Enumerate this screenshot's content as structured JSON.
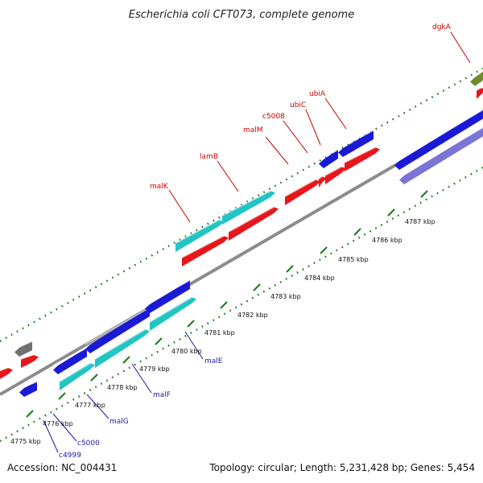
{
  "title": "Escherichia coli CFT073, complete genome",
  "footer": {
    "accession": "Accession: NC_004431",
    "summary": "Topology: circular; Length: 5,231,428 bp; Genes: 5,454"
  },
  "scale_labels": [
    "4775 kbp",
    "4776 kbp",
    "4777 kbp",
    "4778 kbp",
    "4779 kbp",
    "4780 kbp",
    "4781 kbp",
    "4782 kbp",
    "4783 kbp",
    "4784 kbp",
    "4785 kbp",
    "4786 kbp",
    "4787 kbp"
  ],
  "gene_labels_forward": [
    "malK",
    "lamB",
    "malM",
    "c5008",
    "ubiC",
    "ubiA",
    "dgkA"
  ],
  "gene_labels_reverse": [
    "c4999",
    "c5000",
    "malG",
    "malF",
    "malE"
  ],
  "colors": {
    "forward_label": "#cc0000",
    "reverse_label": "#1a1aaa",
    "backbone": "#8c8c8c",
    "dots": "#1a7a1a",
    "blue": "#1a1ad6",
    "cyan": "#22c4c4",
    "red": "#e8151a",
    "olive": "#6e8c2a",
    "gray": "#707070",
    "purple": "#7a74d6"
  }
}
